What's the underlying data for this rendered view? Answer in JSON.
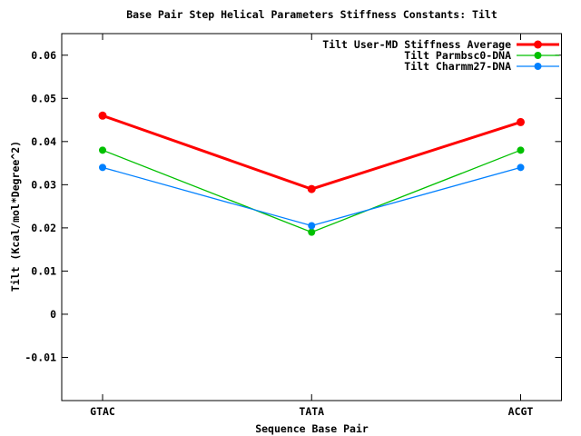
{
  "chart_data": {
    "type": "line",
    "title": "Base Pair Step Helical Parameters Stiffness Constants: Tilt",
    "xlabel": "Sequence Base Pair",
    "ylabel": "Tilt (Kcal/mol*Degree^2)",
    "categories": [
      "GTAC",
      "TATA",
      "ACGT"
    ],
    "series": [
      {
        "name": "Tilt User-MD Stiffness Average",
        "color": "#ff0000",
        "values": [
          0.046,
          0.029,
          0.0445
        ]
      },
      {
        "name": "Tilt Parmbsc0-DNA",
        "color": "#00c000",
        "values": [
          0.038,
          0.019,
          0.038
        ]
      },
      {
        "name": "Tilt Charmm27-DNA",
        "color": "#0080ff",
        "values": [
          0.034,
          0.0205,
          0.034
        ]
      }
    ],
    "y_ticks": [
      {
        "value": 0.06,
        "label": "0.06"
      },
      {
        "value": 0.05,
        "label": "0.05"
      },
      {
        "value": 0.04,
        "label": "0.04"
      },
      {
        "value": 0.03,
        "label": "0.03"
      },
      {
        "value": 0.02,
        "label": "0.02"
      },
      {
        "value": 0.01,
        "label": "0.01"
      },
      {
        "value": 0,
        "label": "0"
      },
      {
        "value": -0.01,
        "label": "-0.01"
      }
    ],
    "ylim": [
      -0.02,
      0.065
    ],
    "grid": false,
    "legend_position": "top-right-inside",
    "axis_color": "#000000",
    "background_color": "#ffffff"
  }
}
